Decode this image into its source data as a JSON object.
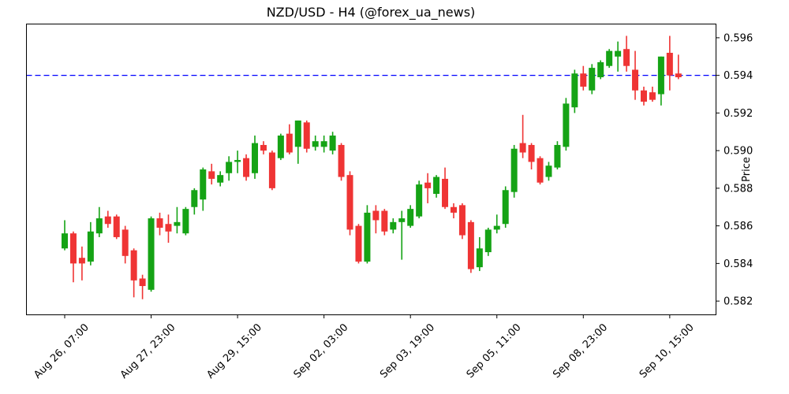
{
  "chart_data": {
    "type": "candlestick",
    "title": "NZD/USD - H4 (@forex_ua_news)",
    "ylabel": "Price",
    "xlabel": "",
    "grid": false,
    "legend": null,
    "symbol": "NZD/USD",
    "timeframe": "H4",
    "source_handle": "@forex_ua_news",
    "up_color": "#15a315",
    "down_color": "#ef3434",
    "hline": {
      "value": 0.594,
      "color": "#0000ff",
      "style": "dashed",
      "name": "current-price-level"
    },
    "ylim": [
      0.58125,
      0.59675
    ],
    "y_ticks": [
      0.582,
      0.584,
      0.586,
      0.588,
      0.59,
      0.592,
      0.594,
      0.596
    ],
    "x_tick_labels": [
      "Aug 26, 07:00",
      "Aug 27, 23:00",
      "Aug 29, 15:00",
      "Sep 02, 03:00",
      "Sep 03, 19:00",
      "Sep 05, 11:00",
      "Sep 08, 23:00",
      "Sep 10, 15:00"
    ],
    "x_tick_indices": [
      0,
      10,
      20,
      30,
      40,
      50,
      60,
      70
    ],
    "ohlc_columns": [
      "open",
      "high",
      "low",
      "close"
    ],
    "ohlc": [
      [
        0.5848,
        0.5863,
        0.5847,
        0.5856
      ],
      [
        0.5856,
        0.5857,
        0.583,
        0.584
      ],
      [
        0.5843,
        0.5849,
        0.5831,
        0.584
      ],
      [
        0.5841,
        0.5862,
        0.5839,
        0.5857
      ],
      [
        0.5856,
        0.587,
        0.5854,
        0.5864
      ],
      [
        0.5865,
        0.5868,
        0.5859,
        0.5861
      ],
      [
        0.5865,
        0.5866,
        0.5853,
        0.5854
      ],
      [
        0.5858,
        0.586,
        0.584,
        0.5844
      ],
      [
        0.5847,
        0.5848,
        0.5822,
        0.5831
      ],
      [
        0.5832,
        0.5834,
        0.5821,
        0.5828
      ],
      [
        0.5826,
        0.5865,
        0.5825,
        0.5864
      ],
      [
        0.5864,
        0.5867,
        0.5855,
        0.5859
      ],
      [
        0.5861,
        0.5866,
        0.5851,
        0.5857
      ],
      [
        0.586,
        0.587,
        0.5856,
        0.5862
      ],
      [
        0.5856,
        0.587,
        0.5855,
        0.5869
      ],
      [
        0.587,
        0.588,
        0.5866,
        0.5879
      ],
      [
        0.5874,
        0.5891,
        0.5868,
        0.589
      ],
      [
        0.5889,
        0.5893,
        0.5882,
        0.5885
      ],
      [
        0.5883,
        0.5889,
        0.5881,
        0.5887
      ],
      [
        0.5888,
        0.5897,
        0.5884,
        0.5894
      ],
      [
        0.5894,
        0.59,
        0.5888,
        0.5895
      ],
      [
        0.5896,
        0.5898,
        0.5884,
        0.5886
      ],
      [
        0.5888,
        0.5908,
        0.5885,
        0.5904
      ],
      [
        0.5903,
        0.5905,
        0.5898,
        0.59
      ],
      [
        0.5899,
        0.59,
        0.5879,
        0.588
      ],
      [
        0.5896,
        0.5909,
        0.5895,
        0.5908
      ],
      [
        0.5909,
        0.5914,
        0.5898,
        0.5899
      ],
      [
        0.5902,
        0.5916,
        0.5893,
        0.5916
      ],
      [
        0.5915,
        0.5916,
        0.5899,
        0.5901
      ],
      [
        0.5902,
        0.5908,
        0.59,
        0.5905
      ],
      [
        0.5902,
        0.5908,
        0.5899,
        0.5905
      ],
      [
        0.59,
        0.591,
        0.5898,
        0.5908
      ],
      [
        0.5903,
        0.5904,
        0.5884,
        0.5886
      ],
      [
        0.5887,
        0.5889,
        0.5855,
        0.5858
      ],
      [
        0.586,
        0.5861,
        0.584,
        0.5841
      ],
      [
        0.5841,
        0.5871,
        0.584,
        0.5867
      ],
      [
        0.5868,
        0.5871,
        0.5856,
        0.5863
      ],
      [
        0.5868,
        0.5869,
        0.5855,
        0.5857
      ],
      [
        0.5858,
        0.5864,
        0.5856,
        0.5862
      ],
      [
        0.5862,
        0.5868,
        0.5842,
        0.5864
      ],
      [
        0.586,
        0.5871,
        0.5859,
        0.5869
      ],
      [
        0.5865,
        0.5884,
        0.5864,
        0.5882
      ],
      [
        0.5883,
        0.5888,
        0.5872,
        0.588
      ],
      [
        0.5877,
        0.5887,
        0.5875,
        0.5886
      ],
      [
        0.5885,
        0.5891,
        0.5869,
        0.587
      ],
      [
        0.587,
        0.5872,
        0.5864,
        0.5867
      ],
      [
        0.5871,
        0.5872,
        0.5853,
        0.5855
      ],
      [
        0.5862,
        0.5863,
        0.5835,
        0.5837
      ],
      [
        0.5838,
        0.5854,
        0.5836,
        0.5848
      ],
      [
        0.5846,
        0.5859,
        0.5844,
        0.5858
      ],
      [
        0.5858,
        0.5866,
        0.5856,
        0.586
      ],
      [
        0.5861,
        0.5881,
        0.5859,
        0.5879
      ],
      [
        0.5878,
        0.5903,
        0.5875,
        0.5901
      ],
      [
        0.5904,
        0.5919,
        0.5896,
        0.5899
      ],
      [
        0.5903,
        0.5904,
        0.589,
        0.5894
      ],
      [
        0.5896,
        0.5897,
        0.5882,
        0.5883
      ],
      [
        0.5886,
        0.5894,
        0.5884,
        0.5892
      ],
      [
        0.5891,
        0.5905,
        0.589,
        0.5903
      ],
      [
        0.5902,
        0.5928,
        0.59,
        0.5925
      ],
      [
        0.5923,
        0.5943,
        0.592,
        0.5941
      ],
      [
        0.5941,
        0.5945,
        0.5932,
        0.5934
      ],
      [
        0.5932,
        0.5946,
        0.593,
        0.5944
      ],
      [
        0.5939,
        0.5948,
        0.5938,
        0.5947
      ],
      [
        0.5945,
        0.5954,
        0.5944,
        0.5953
      ],
      [
        0.595,
        0.5958,
        0.5942,
        0.5953
      ],
      [
        0.5954,
        0.5961,
        0.5942,
        0.5945
      ],
      [
        0.5943,
        0.5953,
        0.5927,
        0.5932
      ],
      [
        0.5932,
        0.5934,
        0.5924,
        0.5926
      ],
      [
        0.5931,
        0.5934,
        0.5926,
        0.5927
      ],
      [
        0.593,
        0.595,
        0.5924,
        0.595
      ],
      [
        0.5952,
        0.5961,
        0.5932,
        0.594
      ],
      [
        0.5941,
        0.5951,
        0.5938,
        0.5939
      ]
    ]
  }
}
